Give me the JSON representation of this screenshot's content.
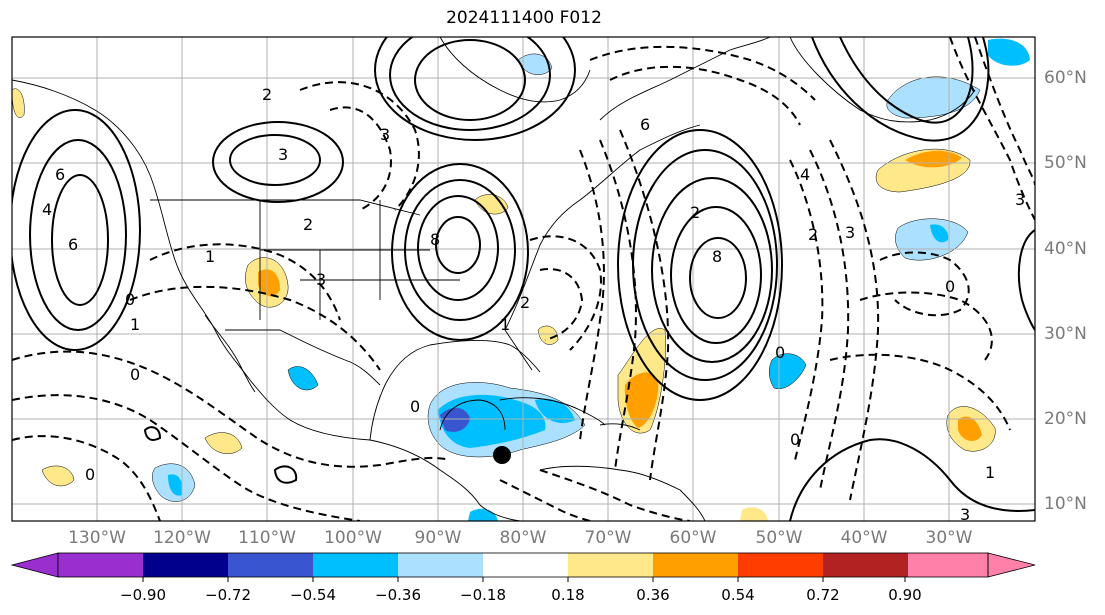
{
  "title": "2024111400 F012",
  "lon_labels": [
    "130°W",
    "120°W",
    "110°W",
    "100°W",
    "90°W",
    "80°W",
    "70°W",
    "60°W",
    "50°W",
    "40°W",
    "30°W"
  ],
  "lat_labels": [
    "60°N",
    "50°N",
    "40°N",
    "30°N",
    "20°N",
    "10°N"
  ],
  "colorbar": {
    "ticks": [
      "−0.90",
      "−0.72",
      "−0.54",
      "−0.36",
      "−0.18",
      "0.18",
      "0.36",
      "0.54",
      "0.72",
      "0.90"
    ],
    "colors": [
      "#9a2fd0",
      "#00008c",
      "#3a55d0",
      "#00bfff",
      "#abe0ff",
      "#ffffff",
      "#ffe88a",
      "#ffa000",
      "#ff3d00",
      "#b22222",
      "#ff80a8"
    ]
  },
  "contour_labels": [
    "2",
    "3",
    "6",
    "4",
    "6",
    "0",
    "1",
    "2",
    "3",
    "8",
    "1",
    "3",
    "0",
    "6",
    "8",
    "2",
    "0",
    "3",
    "4",
    "0",
    "3",
    "2",
    "0",
    "1",
    "0",
    "0",
    "1",
    "2",
    "3"
  ],
  "marker": "storm-center-dot"
}
